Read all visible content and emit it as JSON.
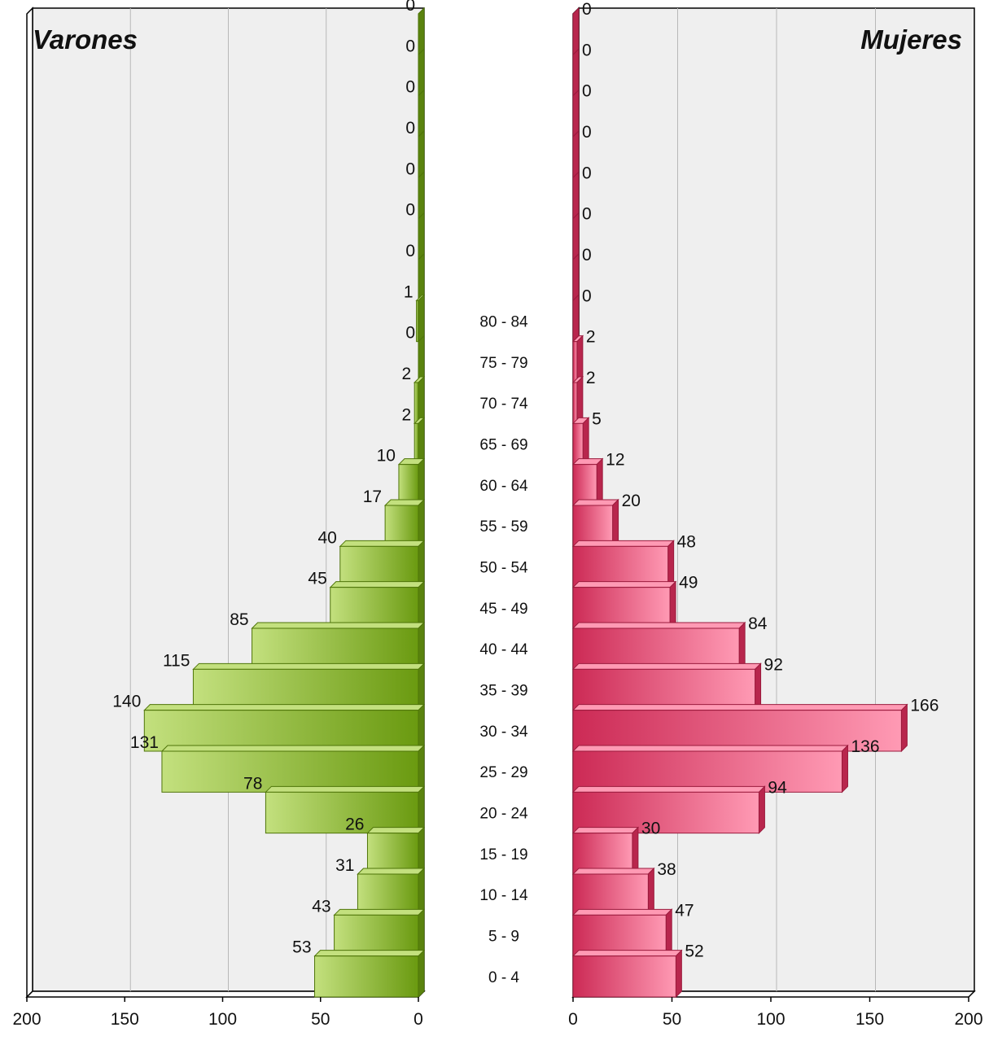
{
  "chart_data": [
    {
      "type": "bar",
      "orientation": "horizontal",
      "title": "Varones",
      "side": "left",
      "categories": [
        "0 - 4",
        "5 - 9",
        "10 - 14",
        "15 - 19",
        "20 - 24",
        "25 - 29",
        "30 - 34",
        "35 - 39",
        "40 - 44",
        "45 - 49",
        "50 - 54",
        "55 - 59",
        "60 - 64",
        "65 - 69",
        "70 - 74",
        "75 - 79",
        "80 - 84",
        "",
        "",
        "",
        "",
        "",
        "",
        ""
      ],
      "values": [
        53,
        43,
        31,
        26,
        78,
        131,
        140,
        115,
        85,
        45,
        40,
        17,
        10,
        2,
        2,
        0,
        1,
        0,
        0,
        0,
        0,
        0,
        0,
        0
      ],
      "xlim": [
        0,
        200
      ],
      "xticks": [
        200,
        150,
        100,
        50,
        0
      ],
      "grid": true,
      "colors": {
        "light": "#c3e07e",
        "dark": "#6a9a10",
        "edge": "#4e7408"
      }
    },
    {
      "type": "bar",
      "orientation": "horizontal",
      "title": "Mujeres",
      "side": "right",
      "categories": [
        "0 - 4",
        "5 - 9",
        "10 - 14",
        "15 - 19",
        "20 - 24",
        "25 - 29",
        "30 - 34",
        "35 - 39",
        "40 - 44",
        "45 - 49",
        "50 - 54",
        "55 - 59",
        "60 - 64",
        "65 - 69",
        "70 - 74",
        "75 - 79",
        "80 - 84",
        "",
        "",
        "",
        "",
        "",
        "",
        ""
      ],
      "values": [
        52,
        47,
        38,
        30,
        94,
        136,
        166,
        92,
        84,
        49,
        48,
        20,
        12,
        5,
        2,
        2,
        0,
        0,
        0,
        0,
        0,
        0,
        0,
        0
      ],
      "xlim": [
        0,
        200
      ],
      "xticks": [
        0,
        50,
        100,
        150,
        200
      ],
      "grid": true,
      "colors": {
        "light": "#ff9ab4",
        "dark": "#cc2a55",
        "edge": "#9a1a3c"
      }
    }
  ],
  "age_groups": [
    "0 - 4",
    "5 - 9",
    "10 - 14",
    "15 - 19",
    "20 - 24",
    "25 - 29",
    "30 - 34",
    "35 - 39",
    "40 - 44",
    "45 - 49",
    "50 - 54",
    "55 - 59",
    "60 - 64",
    "65 - 69",
    "70 - 74",
    "75 - 79",
    "80 - 84"
  ]
}
